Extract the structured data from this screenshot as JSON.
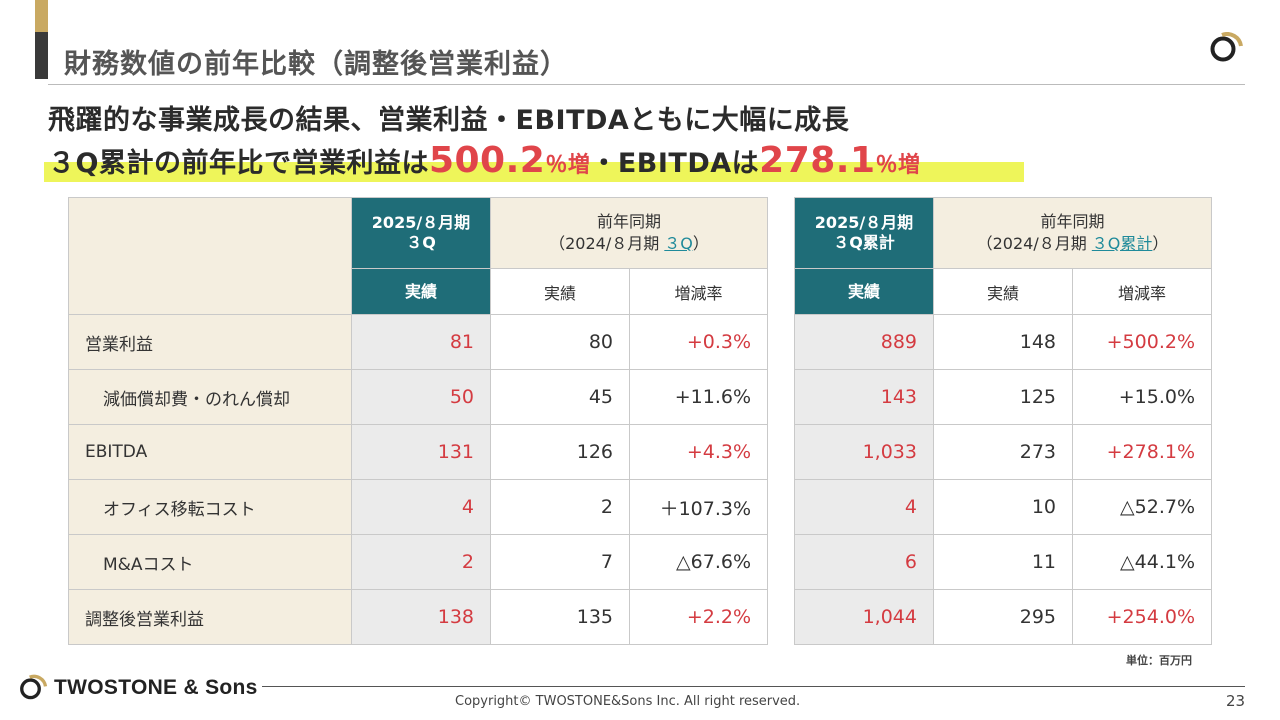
{
  "title": "財務数値の前年比較（調整後営業利益）",
  "headline": {
    "line1": "飛躍的な事業成長の結果、営業利益・EBITDAともに大幅に成長",
    "line2_a": "３Q累計の前年比で営業利益は",
    "line2_value1": "500.2",
    "line2_unit1": "％増",
    "line2_b": "・EBITDAは",
    "line2_value2": "278.1",
    "line2_unit2": "％増"
  },
  "left_table": {
    "current_header_l1": "2025/８月期",
    "current_header_l2": "３Q",
    "prior_header_l1": "前年同期",
    "prior_header_l2_a": "（2024/８月期 ",
    "prior_header_l2_link": "３Q",
    "prior_header_l2_b": "）",
    "col_actual": "実績",
    "col_prior_actual": "実績",
    "col_change": "増減率",
    "rows": [
      {
        "label": "営業利益",
        "current": "81",
        "prior": "80",
        "change": "+0.3%"
      },
      {
        "label": "減価償却費・のれん償却",
        "current": "50",
        "prior": "45",
        "change": "+11.6%"
      },
      {
        "label": "EBITDA",
        "current": "131",
        "prior": "126",
        "change": "+4.3%"
      },
      {
        "label": "オフィス移転コスト",
        "current": "4",
        "prior": "2",
        "change": "＋107.3%"
      },
      {
        "label": "M&Aコスト",
        "current": "2",
        "prior": "7",
        "change": "△67.6%"
      },
      {
        "label": "調整後営業利益",
        "current": "138",
        "prior": "135",
        "change": "+2.2%"
      }
    ]
  },
  "right_table": {
    "current_header_l1": "2025/８月期",
    "current_header_l2": "３Q累計",
    "prior_header_l1": "前年同期",
    "prior_header_l2_a": "（2024/８月期 ",
    "prior_header_l2_link": "３Q累計",
    "prior_header_l2_b": "）",
    "col_actual": "実績",
    "col_prior_actual": "実績",
    "col_change": "増減率",
    "rows": [
      {
        "current": "889",
        "prior": "148",
        "change": "+500.2%"
      },
      {
        "current": "143",
        "prior": "125",
        "change": "+15.0%"
      },
      {
        "current": "1,033",
        "prior": "273",
        "change": "+278.1%"
      },
      {
        "current": "4",
        "prior": "10",
        "change": "△52.7%"
      },
      {
        "current": "6",
        "prior": "11",
        "change": "△44.1%"
      },
      {
        "current": "1,044",
        "prior": "295",
        "change": "+254.0%"
      }
    ]
  },
  "unit_note": "単位：百万円",
  "footer": {
    "logo_text": "TWOSTONE & Sons",
    "copyright": "Copyright© TWOSTONE&Sons Inc. All right reserved.",
    "page_number": "23"
  },
  "colors": {
    "accent_teal": "#1f6d78",
    "accent_gold": "#c9a962",
    "positive_red": "#d43b41",
    "highlight_yellow": "#eef55a",
    "beige": "#f4eee0"
  }
}
